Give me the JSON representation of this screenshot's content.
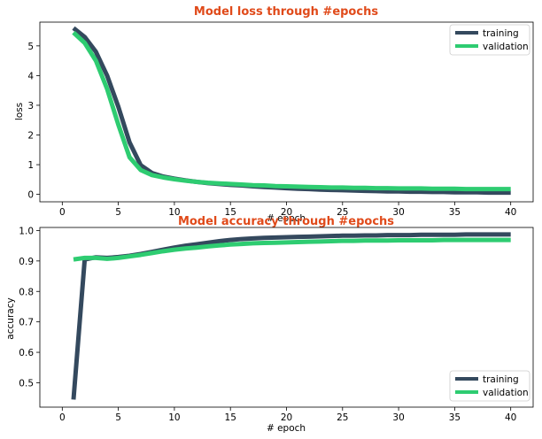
{
  "colors": {
    "training": "#34495e",
    "validation": "#2ecc71",
    "title": "#e04a1a"
  },
  "chart_data": [
    {
      "type": "line",
      "title": "Model loss through #epochs",
      "xlabel": "# epoch",
      "ylabel": "loss",
      "xlim": [
        -2,
        42
      ],
      "ylim": [
        -0.25,
        5.8
      ],
      "xticks": [
        0,
        5,
        10,
        15,
        20,
        25,
        30,
        35,
        40
      ],
      "yticks": [
        0,
        1,
        2,
        3,
        4,
        5
      ],
      "yticklabels": [
        "0",
        "1",
        "2",
        "3",
        "4",
        "5"
      ],
      "legend": "top-right",
      "x": [
        1,
        2,
        3,
        4,
        5,
        6,
        7,
        8,
        9,
        10,
        11,
        12,
        13,
        14,
        15,
        16,
        17,
        18,
        19,
        20,
        21,
        22,
        23,
        24,
        25,
        26,
        27,
        28,
        29,
        30,
        31,
        32,
        33,
        34,
        35,
        36,
        37,
        38,
        39,
        40
      ],
      "series": [
        {
          "name": "training",
          "values": [
            5.6,
            5.3,
            4.8,
            4.0,
            2.95,
            1.75,
            0.98,
            0.72,
            0.6,
            0.53,
            0.47,
            0.42,
            0.38,
            0.35,
            0.32,
            0.3,
            0.27,
            0.25,
            0.23,
            0.21,
            0.19,
            0.18,
            0.16,
            0.15,
            0.14,
            0.13,
            0.12,
            0.11,
            0.1,
            0.1,
            0.09,
            0.09,
            0.08,
            0.08,
            0.07,
            0.07,
            0.07,
            0.06,
            0.06,
            0.06
          ]
        },
        {
          "name": "validation",
          "values": [
            5.45,
            5.1,
            4.5,
            3.55,
            2.35,
            1.25,
            0.82,
            0.65,
            0.57,
            0.51,
            0.46,
            0.42,
            0.39,
            0.37,
            0.35,
            0.33,
            0.31,
            0.3,
            0.28,
            0.27,
            0.26,
            0.25,
            0.24,
            0.23,
            0.23,
            0.22,
            0.22,
            0.21,
            0.21,
            0.2,
            0.2,
            0.2,
            0.19,
            0.19,
            0.19,
            0.18,
            0.18,
            0.18,
            0.18,
            0.18
          ]
        }
      ]
    },
    {
      "type": "line",
      "title": "Model accuracy through #epochs",
      "xlabel": "# epoch",
      "ylabel": "accuracy",
      "xlim": [
        -2,
        42
      ],
      "ylim": [
        0.42,
        1.01
      ],
      "xticks": [
        0,
        5,
        10,
        15,
        20,
        25,
        30,
        35,
        40
      ],
      "yticks": [
        0.5,
        0.6,
        0.7,
        0.8,
        0.9,
        1.0
      ],
      "yticklabels": [
        "0.5",
        "0.6",
        "0.7",
        "0.8",
        "0.9",
        "1.0"
      ],
      "legend": "bottom-right",
      "x": [
        1,
        2,
        3,
        4,
        5,
        6,
        7,
        8,
        9,
        10,
        11,
        12,
        13,
        14,
        15,
        16,
        17,
        18,
        19,
        20,
        21,
        22,
        23,
        24,
        25,
        26,
        27,
        28,
        29,
        30,
        31,
        32,
        33,
        34,
        35,
        36,
        37,
        38,
        39,
        40
      ],
      "series": [
        {
          "name": "training",
          "values": [
            0.445,
            0.905,
            0.912,
            0.91,
            0.913,
            0.917,
            0.923,
            0.93,
            0.937,
            0.944,
            0.95,
            0.955,
            0.96,
            0.965,
            0.969,
            0.972,
            0.974,
            0.976,
            0.977,
            0.978,
            0.979,
            0.98,
            0.981,
            0.982,
            0.983,
            0.983,
            0.984,
            0.984,
            0.985,
            0.985,
            0.985,
            0.986,
            0.986,
            0.986,
            0.986,
            0.987,
            0.987,
            0.987,
            0.987,
            0.987
          ]
        },
        {
          "name": "validation",
          "values": [
            0.905,
            0.91,
            0.91,
            0.907,
            0.91,
            0.915,
            0.92,
            0.926,
            0.932,
            0.937,
            0.941,
            0.944,
            0.948,
            0.951,
            0.954,
            0.956,
            0.958,
            0.959,
            0.96,
            0.961,
            0.962,
            0.963,
            0.964,
            0.965,
            0.966,
            0.966,
            0.967,
            0.967,
            0.967,
            0.968,
            0.968,
            0.968,
            0.968,
            0.969,
            0.969,
            0.969,
            0.969,
            0.969,
            0.969,
            0.969
          ]
        }
      ]
    }
  ]
}
